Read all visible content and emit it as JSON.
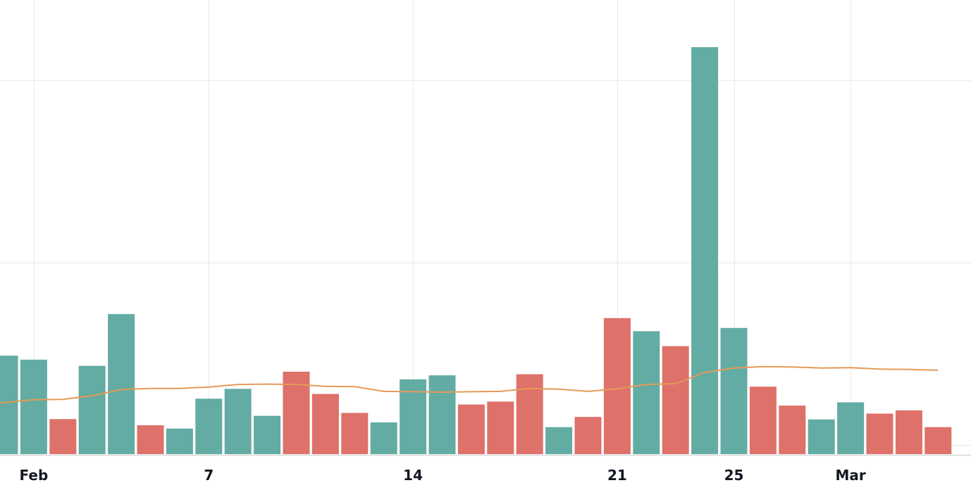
{
  "chart_data": {
    "type": "bar",
    "title": "",
    "xlabel": "",
    "ylabel": "",
    "ylim": [
      0,
      1090
    ],
    "grid": true,
    "colors": {
      "up": "#63aca3",
      "down": "#de7169",
      "moving_average": "#e59a57",
      "grid": "#e9e9ea"
    },
    "x_ticks": [
      {
        "label": "Feb",
        "day": 1
      },
      {
        "label": "7",
        "day": 7
      },
      {
        "label": "14",
        "day": 14
      },
      {
        "label": "21",
        "day": 21
      },
      {
        "label": "25",
        "day": 25
      },
      {
        "label": "Mar",
        "day": 29
      }
    ],
    "y_gridlines": [
      25,
      525,
      1025
    ],
    "days": [
      0,
      1,
      2,
      3,
      4,
      5,
      6,
      7,
      8,
      9,
      10,
      11,
      12,
      13,
      14,
      15,
      16,
      17,
      18,
      19,
      20,
      21,
      22,
      23,
      24,
      25,
      26,
      27,
      28,
      29,
      30,
      31,
      32
    ],
    "series": [
      {
        "name": "",
        "kind": "bar",
        "values": [
          270,
          259,
          96,
          242,
          384,
          79,
          70,
          152,
          179,
          105,
          226,
          165,
          113,
          87,
          205,
          216,
          136,
          144,
          219,
          74,
          102,
          373,
          337,
          296,
          1116,
          346,
          185,
          133,
          95,
          142,
          111,
          120,
          74
        ],
        "direction": [
          "up",
          "up",
          "down",
          "up",
          "up",
          "down",
          "up",
          "up",
          "up",
          "up",
          "down",
          "down",
          "down",
          "up",
          "up",
          "up",
          "down",
          "down",
          "down",
          "up",
          "down",
          "down",
          "up",
          "down",
          "up",
          "up",
          "down",
          "down",
          "up",
          "up",
          "down",
          "down",
          "down"
        ]
      },
      {
        "name": "",
        "kind": "line",
        "values": [
          140,
          149,
          150,
          160,
          177,
          180,
          180,
          184,
          191,
          192,
          191,
          186,
          185,
          172,
          171,
          170,
          171,
          172,
          180,
          178,
          172,
          179,
          191,
          193,
          224,
          236,
          240,
          239,
          236,
          237,
          233,
          232,
          230
        ]
      }
    ]
  }
}
